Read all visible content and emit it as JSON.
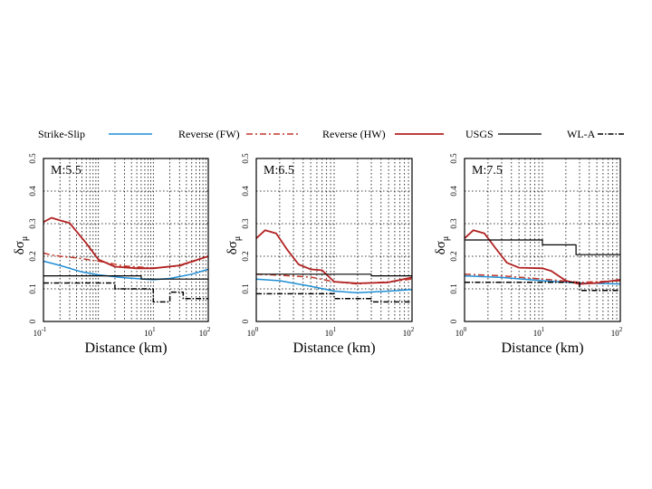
{
  "legend": [
    {
      "label": "Strike-Slip",
      "color": "#1f8fd6",
      "dash": "solid",
      "width": 1.5
    },
    {
      "label": "Reverse (FW)",
      "color": "#c0392b",
      "dash": "7 3 2 3",
      "width": 1.5
    },
    {
      "label": "Reverse (HW)",
      "color": "#b22222",
      "dash": "solid",
      "width": 1.8
    },
    {
      "label": "USGS",
      "color": "#000000",
      "dash": "solid",
      "width": 1.2
    },
    {
      "label": "WL-A",
      "color": "#000000",
      "dash": "6 2 1.5 2",
      "width": 1.5
    }
  ],
  "chart_data": [
    {
      "type": "line",
      "title": "M:5.5",
      "xlabel": "Distance (km)",
      "ylabel_symbol": "δσ",
      "ylabel_sub": "μ",
      "xscale": "log",
      "xlim": [
        0.1,
        100
      ],
      "ylim": [
        0,
        0.5
      ],
      "xticks": [
        {
          "base": "10",
          "exp": "-1",
          "value": 0.1
        },
        {
          "base": "10",
          "exp": "1",
          "value": 10
        },
        {
          "base": "10",
          "exp": "2",
          "value": 100
        }
      ],
      "yticks": [
        "0",
        "0.1",
        "0.2",
        "0.3",
        "0.4",
        "0.5"
      ],
      "series": [
        {
          "name": "Strike-Slip",
          "x": [
            0.1,
            0.2,
            0.5,
            1,
            3,
            10,
            20,
            50,
            100
          ],
          "y": [
            0.185,
            0.172,
            0.152,
            0.143,
            0.134,
            0.128,
            0.132,
            0.145,
            0.16
          ]
        },
        {
          "name": "Reverse (FW)",
          "x": [
            0.1,
            0.13,
            0.2,
            0.4,
            1,
            3,
            10,
            30,
            100
          ],
          "y": [
            0.21,
            0.205,
            0.2,
            0.195,
            0.185,
            0.17,
            0.164,
            0.17,
            0.2
          ]
        },
        {
          "name": "Reverse (HW)",
          "x": [
            0.1,
            0.14,
            0.2,
            0.3,
            0.6,
            1,
            2,
            5,
            10,
            30,
            100
          ],
          "y": [
            0.305,
            0.318,
            0.31,
            0.302,
            0.24,
            0.19,
            0.168,
            0.163,
            0.163,
            0.172,
            0.2
          ]
        },
        {
          "name": "USGS",
          "x": [
            0.1,
            6,
            6,
            100
          ],
          "y": [
            0.14,
            0.14,
            0.13,
            0.13
          ]
        },
        {
          "name": "WL-A",
          "x": [
            0.1,
            2,
            2,
            10,
            10,
            20,
            20,
            35,
            35,
            100
          ],
          "y": [
            0.118,
            0.118,
            0.1,
            0.1,
            0.06,
            0.06,
            0.09,
            0.09,
            0.07,
            0.07
          ]
        }
      ]
    },
    {
      "type": "line",
      "title": "M:6.5",
      "xlabel": "Distance (km)",
      "ylabel_symbol": "δσ",
      "ylabel_sub": "μ",
      "xscale": "log",
      "xlim": [
        1,
        100
      ],
      "ylim": [
        0,
        0.5
      ],
      "xticks": [
        {
          "base": "10",
          "exp": "0",
          "value": 1
        },
        {
          "base": "10",
          "exp": "1",
          "value": 10
        },
        {
          "base": "10",
          "exp": "2",
          "value": 100
        }
      ],
      "yticks": [
        "0",
        "0.1",
        "0.2",
        "0.3",
        "0.4",
        "0.5"
      ],
      "series": [
        {
          "name": "Strike-Slip",
          "x": [
            1,
            2,
            5,
            10,
            20,
            50,
            100
          ],
          "y": [
            0.13,
            0.125,
            0.108,
            0.093,
            0.088,
            0.093,
            0.098
          ]
        },
        {
          "name": "Reverse (FW)",
          "x": [
            1,
            2,
            5,
            10,
            20,
            50,
            100
          ],
          "y": [
            0.145,
            0.142,
            0.136,
            0.122,
            0.115,
            0.122,
            0.13
          ]
        },
        {
          "name": "Reverse (HW)",
          "x": [
            1,
            1.3,
            1.8,
            2.5,
            3.5,
            5,
            7,
            10,
            20,
            50,
            100
          ],
          "y": [
            0.255,
            0.28,
            0.27,
            0.22,
            0.175,
            0.16,
            0.157,
            0.122,
            0.117,
            0.12,
            0.135
          ]
        },
        {
          "name": "USGS",
          "x": [
            1,
            30,
            30,
            100
          ],
          "y": [
            0.145,
            0.145,
            0.14,
            0.14
          ]
        },
        {
          "name": "WL-A",
          "x": [
            1,
            10,
            10,
            30,
            30,
            100
          ],
          "y": [
            0.085,
            0.085,
            0.07,
            0.07,
            0.06,
            0.06
          ]
        }
      ]
    },
    {
      "type": "line",
      "title": "M:7.5",
      "xlabel": "Distance (km)",
      "ylabel_symbol": "δσ",
      "ylabel_sub": "μ",
      "xscale": "log",
      "xlim": [
        1,
        100
      ],
      "ylim": [
        0,
        0.5
      ],
      "xticks": [
        {
          "base": "10",
          "exp": "0",
          "value": 1
        },
        {
          "base": "10",
          "exp": "1",
          "value": 10
        },
        {
          "base": "10",
          "exp": "2",
          "value": 100
        }
      ],
      "yticks": [
        "0",
        "0.1",
        "0.2",
        "0.3",
        "0.4",
        "0.5"
      ],
      "series": [
        {
          "name": "Strike-Slip",
          "x": [
            1,
            3,
            10,
            30,
            100
          ],
          "y": [
            0.14,
            0.135,
            0.125,
            0.118,
            0.115
          ]
        },
        {
          "name": "Reverse (FW)",
          "x": [
            1,
            3,
            10,
            30,
            100
          ],
          "y": [
            0.145,
            0.14,
            0.13,
            0.12,
            0.125
          ]
        },
        {
          "name": "Reverse (HW)",
          "x": [
            1,
            1.3,
            1.8,
            2.5,
            3.5,
            5,
            10,
            13,
            20,
            30,
            50,
            100
          ],
          "y": [
            0.255,
            0.28,
            0.27,
            0.225,
            0.18,
            0.165,
            0.163,
            0.155,
            0.125,
            0.115,
            0.118,
            0.128
          ]
        },
        {
          "name": "USGS",
          "x": [
            1,
            10,
            10,
            27,
            27,
            100
          ],
          "y": [
            0.25,
            0.25,
            0.235,
            0.235,
            0.205,
            0.205
          ]
        },
        {
          "name": "WL-A",
          "x": [
            1,
            30,
            30,
            100
          ],
          "y": [
            0.12,
            0.12,
            0.095,
            0.095
          ]
        }
      ]
    }
  ]
}
